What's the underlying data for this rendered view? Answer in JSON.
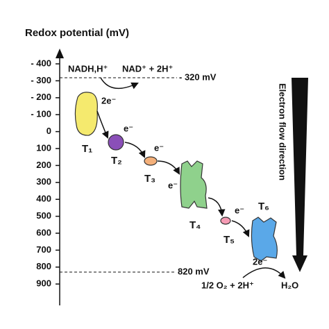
{
  "axis": {
    "title": "Redox potential (mV)",
    "ticks": [
      "- 400",
      "- 300",
      "- 200",
      "- 100",
      "0",
      "100",
      "200",
      "300",
      "400",
      "500",
      "600",
      "700",
      "800",
      "900"
    ]
  },
  "reactions": {
    "nadh": "NADH,H⁺",
    "nad": "NAD⁺ + 2H⁺",
    "oxygen": "1/2 O₂ + 2H⁺",
    "water": "H₂O"
  },
  "levels": [
    "- 320 mV",
    "820 mV"
  ],
  "electrons": [
    "2e⁻",
    "e⁻",
    "e⁻",
    "e⁻",
    "e⁻",
    "2e⁻"
  ],
  "carriers": [
    "T₁",
    "T₂",
    "T₃",
    "T₄",
    "T₅",
    "T₆"
  ],
  "direction": "Electron flow direction"
}
